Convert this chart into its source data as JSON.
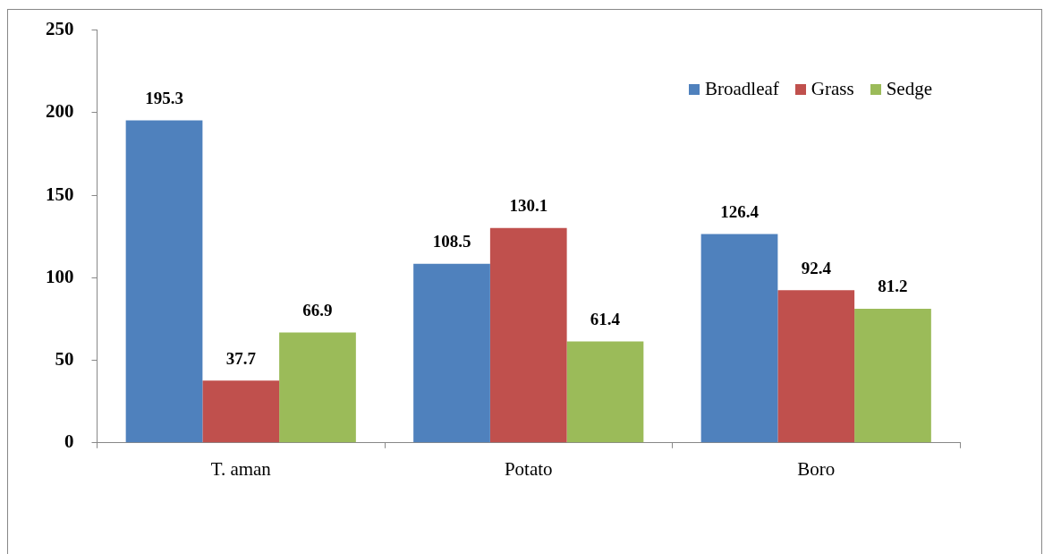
{
  "chart_data": {
    "type": "bar",
    "categories": [
      "T. aman",
      "Potato",
      "Boro"
    ],
    "series": [
      {
        "name": "Broadleaf",
        "color": "#4f81bd",
        "values": [
          195.3,
          108.5,
          126.4
        ]
      },
      {
        "name": "Grass",
        "color": "#c0504d",
        "values": [
          37.7,
          130.1,
          92.4
        ]
      },
      {
        "name": "Sedge",
        "color": "#9bbb59",
        "values": [
          66.9,
          61.4,
          81.2
        ]
      }
    ],
    "ylim": [
      0,
      250
    ],
    "yticks": [
      0,
      50,
      100,
      150,
      200,
      250
    ],
    "grid": false,
    "legend": "top right",
    "data_labels": true
  }
}
